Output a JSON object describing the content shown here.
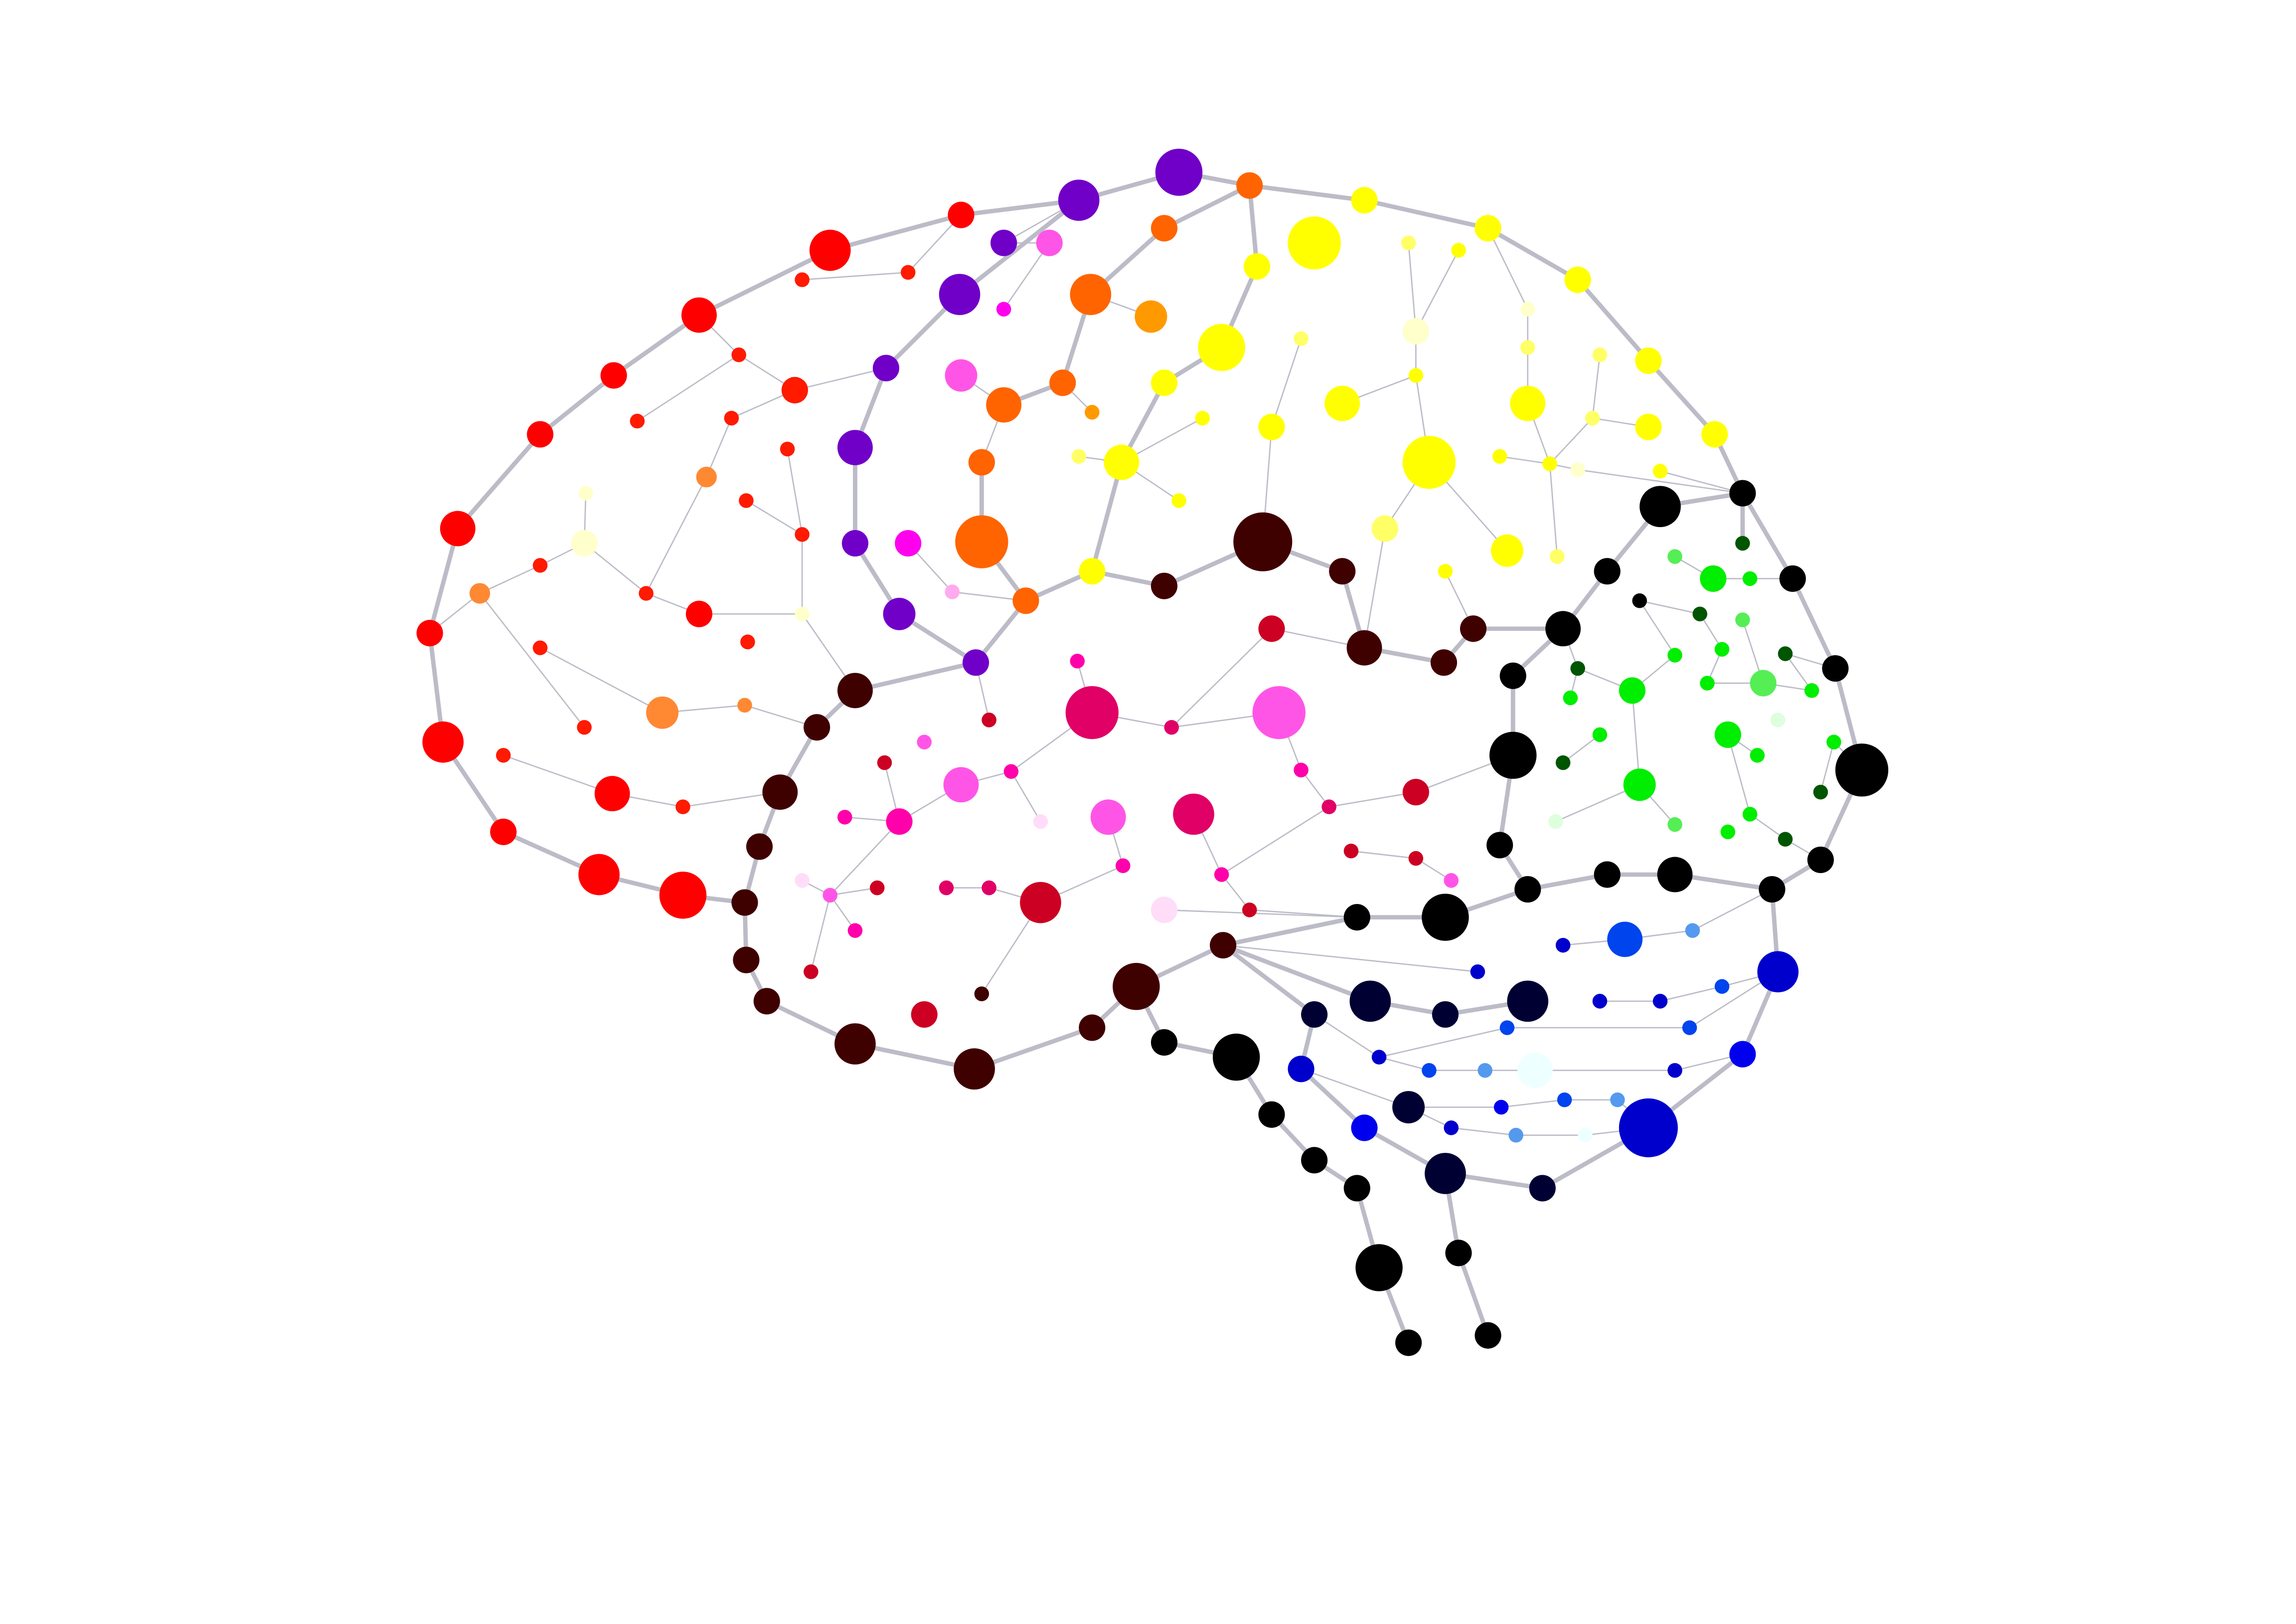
{
  "palette": {
    "background": "#ffffff",
    "edge": "#bcbcc8",
    "frontal_lobe": "#ff0000",
    "frontal_lobe_accent": "#ff8833",
    "motor_cortex": "#6e00c8",
    "premotor": "#ff6400",
    "pink_highlight": "#ff55e6",
    "parietal_lobe": "#ffff00",
    "central_core": "#e00066",
    "deep_structures": "#3f0000",
    "occipital_lobe": "#00ee00",
    "temporal_lobe": "#0000cc",
    "cerebellum": "#000000"
  }
}
